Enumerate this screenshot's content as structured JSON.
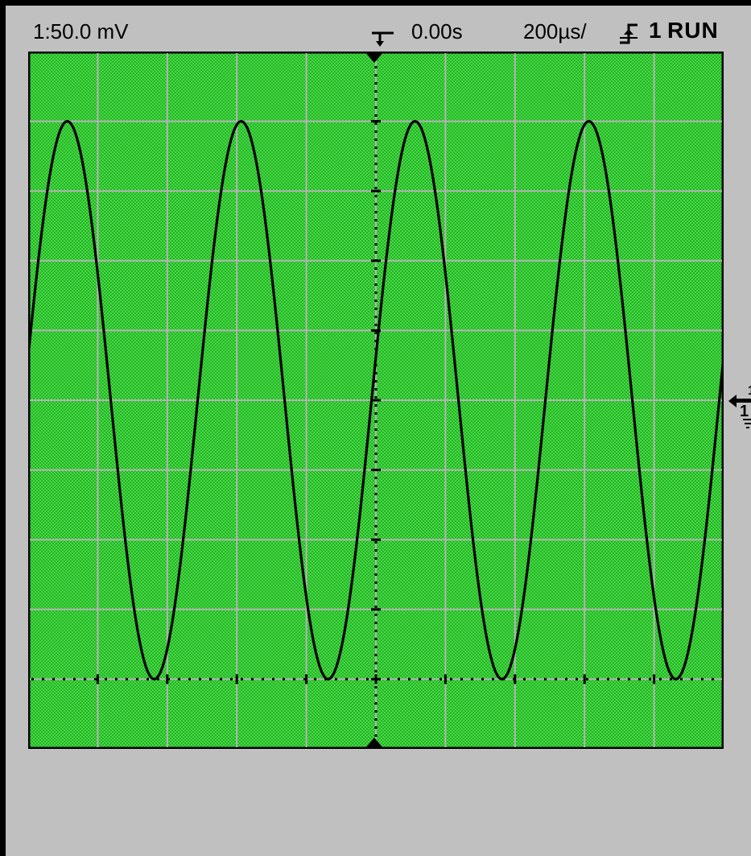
{
  "status_bar": {
    "channel_scale": "1:50.0 mV",
    "delay": "0.00s",
    "timebase": "200µs/",
    "trigger_source": "1",
    "run_state": "RUN"
  },
  "icons": {
    "trigger_position": "trigger-position-icon",
    "trigger_slope": "rising-edge-trigger-icon",
    "ground_reference": "channel-1-ground-marker-icon"
  },
  "colors": {
    "screen_background": "#33cc33",
    "grid": "#b4b4b4",
    "trace": "#000000",
    "bezel": "#c0c0c0"
  },
  "chart_data": {
    "type": "line",
    "title": "",
    "xlabel": "",
    "ylabel": "",
    "divisions": {
      "x": 10,
      "y": 10
    },
    "x_per_div_us": 200,
    "y_per_div_mV": 50,
    "xlim_us": [
      -1000,
      1000
    ],
    "ylim_mV": [
      -50,
      450
    ],
    "grid": true,
    "series": [
      {
        "waveform": "sine",
        "offset_mV": 200,
        "amplitude_mV": 200,
        "period_us": 500,
        "samples": {
          "t_us": [
            -1000,
            -950,
            -900,
            -850,
            -800,
            -750,
            -700,
            -650,
            -600,
            -550,
            -500,
            -450,
            -400,
            -350,
            -300,
            -250,
            -200,
            -150,
            -100,
            -50,
            0,
            50,
            100,
            150,
            200,
            250,
            300,
            350,
            400,
            450,
            500,
            550,
            600,
            650,
            700,
            750,
            800,
            850,
            900,
            950,
            1000
          ],
          "v_mV": [
            200,
            318,
            390,
            390,
            318,
            200,
            82,
            10,
            10,
            82,
            200,
            318,
            390,
            390,
            318,
            200,
            82,
            10,
            10,
            82,
            200,
            318,
            390,
            390,
            318,
            200,
            82,
            10,
            10,
            82,
            200,
            318,
            390,
            390,
            318,
            200,
            82,
            10,
            10,
            82,
            200
          ]
        }
      }
    ]
  }
}
